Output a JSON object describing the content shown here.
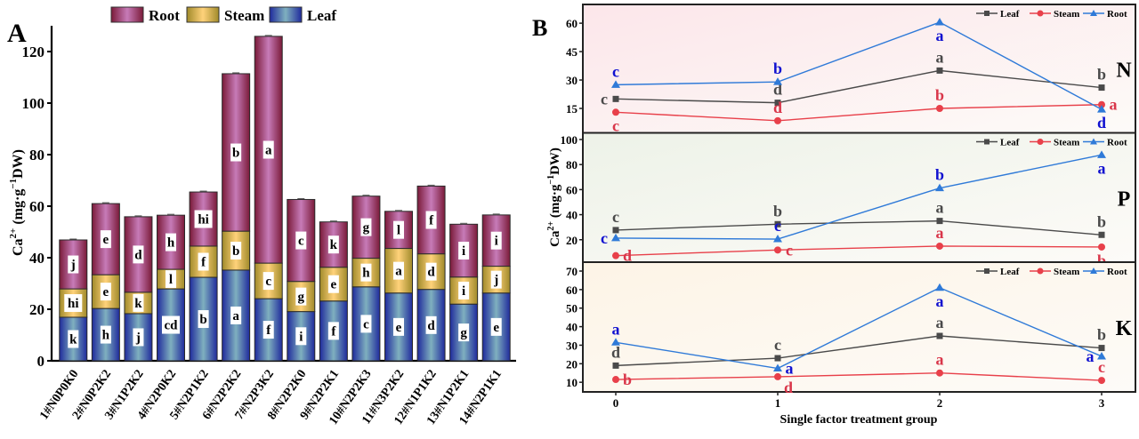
{
  "figure": {
    "panel_a_label": "A",
    "panel_b_label": "B"
  },
  "chart_data": [
    {
      "id": "A",
      "type": "bar",
      "stacked": true,
      "title": "",
      "xlabel": "",
      "ylabel": "Ca2+ (mg·g−1DW)",
      "ylabel_parts": {
        "base": "Ca",
        "sup": "2+",
        "unit_pre": " (mg·g",
        "unit_sup": "−1",
        "unit_post": "DW)"
      },
      "ylim": [
        0,
        130
      ],
      "yticks": [
        0,
        20,
        40,
        60,
        80,
        100,
        120
      ],
      "grid": false,
      "legend": {
        "position": "top",
        "entries": [
          "Root",
          "Steam",
          "Leaf"
        ]
      },
      "categories": [
        "1#N0P0K0",
        "2#N0P2K2",
        "3#N1P2K2",
        "4#N2P0K2",
        "5#N2P1K2",
        "6#N2P2K2",
        "7#N2P3K2",
        "8#N2P2K0",
        "9#N2P2K1",
        "10#N2P2K3",
        "11#N3P2K2",
        "12#N1P1K2",
        "13#N1P2K1",
        "14#N2P1K1"
      ],
      "series": [
        {
          "name": "Leaf",
          "color_dark": "#1f2a9c",
          "color_light": "#7fb0bf",
          "values": [
            16.9,
            20.3,
            18.3,
            27.9,
            32.4,
            35.2,
            24.1,
            19.1,
            23.2,
            28.7,
            26.3,
            27.7,
            22.0,
            26.3
          ],
          "letters": [
            "k",
            "h",
            "j",
            "cd",
            "b",
            "a",
            "f",
            "i",
            "f",
            "c",
            "e",
            "d",
            "g",
            "e"
          ]
        },
        {
          "name": "Steam",
          "color_dark": "#a08a2a",
          "color_light": "#ffd27a",
          "values": [
            11.0,
            13.1,
            8.3,
            7.6,
            12.1,
            15.1,
            13.8,
            11.7,
            13.1,
            11.1,
            17.3,
            13.8,
            10.5,
            10.4
          ],
          "letters": [
            "hi",
            "e",
            "k",
            "l",
            "f",
            "b",
            "c",
            "g",
            "e",
            "h",
            "a",
            "d",
            "i",
            "j"
          ]
        },
        {
          "name": "Root",
          "color_dark": "#7a1a38",
          "color_light": "#c77bb8",
          "values": [
            19.0,
            27.6,
            29.3,
            21.0,
            21.0,
            61.1,
            88.0,
            31.8,
            17.6,
            24.1,
            14.4,
            26.3,
            20.5,
            19.9
          ],
          "letters": [
            "j",
            "e",
            "d",
            "h",
            "hi",
            "b",
            "a",
            "c",
            "k",
            "g",
            "l",
            "f",
            "i",
            "i"
          ]
        }
      ]
    },
    {
      "id": "B",
      "type": "line",
      "xlabel": "Single factor treatment group",
      "ylabel": "Ca2+ (mg·g−1DW)",
      "ylabel_parts": {
        "base": "Ca",
        "sup": "2+",
        "unit_pre": " (mg·g",
        "unit_sup": "−1",
        "unit_post": "DW)"
      },
      "x": [
        0,
        1,
        2,
        3
      ],
      "xticks": [
        "0",
        "1",
        "2",
        "3"
      ],
      "grid": false,
      "legend": {
        "position": "top-right",
        "entries": [
          "Leaf",
          "Steam",
          "Root"
        ]
      },
      "colors": {
        "Leaf": "#4a4a4a",
        "Steam": "#e8404a",
        "Root": "#2f7ad8",
        "Leaf_letter": "#4a4a4a",
        "Steam_letter": "#d9364a",
        "Root_letter": "#1010d0"
      },
      "subplots": [
        {
          "name": "N",
          "bg_color": "#fce6ea",
          "ylim": [
            2.1,
            69.9
          ],
          "yticks": [
            15,
            30,
            45,
            60
          ],
          "series": [
            {
              "name": "Leaf",
              "marker": "square",
              "values": [
                20.0,
                18.0,
                35.0,
                26.0
              ],
              "letters": [
                "c",
                "d",
                "a",
                "b"
              ],
              "letter_pos": [
                "left",
                "above",
                "above",
                "above"
              ]
            },
            {
              "name": "Steam",
              "marker": "circle",
              "values": [
                13.0,
                8.5,
                15.0,
                17.0
              ],
              "letters": [
                "c",
                "d",
                "b",
                "a"
              ],
              "letter_pos": [
                "below",
                "above",
                "above",
                "right"
              ]
            },
            {
              "name": "Root",
              "marker": "triangle",
              "values": [
                27.5,
                29.0,
                60.5,
                14.5
              ],
              "letters": [
                "c",
                "b",
                "a",
                "d"
              ],
              "letter_pos": [
                "above",
                "above",
                "below",
                "below"
              ]
            }
          ]
        },
        {
          "name": "P",
          "bg_color": "#edf2e8",
          "ylim": [
            2.1,
            105.3
          ],
          "yticks": [
            20,
            40,
            60,
            80,
            100
          ],
          "series": [
            {
              "name": "Leaf",
              "marker": "square",
              "values": [
                27.7,
                32.4,
                35.0,
                23.9
              ],
              "letters": [
                "c",
                "b",
                "a",
                "b"
              ],
              "letter_pos": [
                "above",
                "above",
                "above",
                "above"
              ]
            },
            {
              "name": "Steam",
              "marker": "circle",
              "values": [
                7.3,
                11.8,
                14.9,
                14.2
              ],
              "letters": [
                "d",
                "c",
                "a",
                "b"
              ],
              "letter_pos": [
                "right",
                "right",
                "above",
                "below"
              ]
            },
            {
              "name": "Root",
              "marker": "triangle",
              "values": [
                21.3,
                20.5,
                61.2,
                87.7
              ],
              "letters": [
                "c",
                "c",
                "b",
                "a"
              ],
              "letter_pos": [
                "left",
                "above",
                "above",
                "below"
              ]
            }
          ]
        },
        {
          "name": "K",
          "bg_color": "#fdf4e6",
          "ylim": [
            4.8,
            74.8
          ],
          "yticks": [
            10,
            20,
            30,
            40,
            50,
            60,
            70
          ],
          "series": [
            {
              "name": "Leaf",
              "marker": "square",
              "values": [
                19.0,
                23.0,
                35.0,
                28.5
              ],
              "letters": [
                "d",
                "c",
                "a",
                "b"
              ],
              "letter_pos": [
                "above",
                "above",
                "above",
                "above"
              ]
            },
            {
              "name": "Steam",
              "marker": "circle",
              "values": [
                11.5,
                13.0,
                15.0,
                11.0
              ],
              "letters": [
                "b",
                "d",
                "a",
                "c"
              ],
              "letter_pos": [
                "right",
                "below-right",
                "above",
                "above"
              ]
            },
            {
              "name": "Root",
              "marker": "triangle",
              "values": [
                31.5,
                17.5,
                61.0,
                24.0
              ],
              "letters": [
                "a",
                "a",
                "a",
                "a"
              ],
              "letter_pos": [
                "above",
                "right",
                "below",
                "left"
              ]
            }
          ]
        }
      ]
    }
  ]
}
